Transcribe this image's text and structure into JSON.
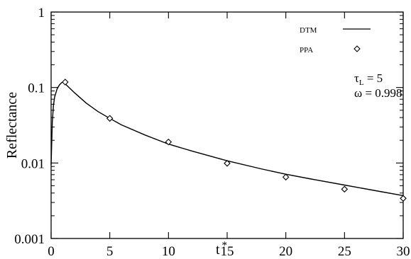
{
  "chart_data": {
    "type": "line",
    "xlabel": "t",
    "xlabel_sup": "*",
    "ylabel": "Reflectance",
    "xlim": [
      0,
      30
    ],
    "ylim": [
      0.001,
      1
    ],
    "yscale": "log",
    "grid": false,
    "legend_position": "top-right",
    "x_ticks": [
      0,
      5,
      10,
      15,
      20,
      25,
      30
    ],
    "x_tick_labels": [
      "0",
      "5",
      "10",
      "15",
      "20",
      "25",
      "30"
    ],
    "y_ticks": [
      0.001,
      0.01,
      0.1,
      1
    ],
    "y_tick_labels": [
      "0.001",
      "0.01",
      "0.1",
      "1"
    ],
    "series": [
      {
        "name": "DTM",
        "style": "line",
        "x": [
          0,
          0.1,
          0.2,
          0.3,
          0.5,
          0.7,
          0.9,
          1.0,
          1.2,
          1.5,
          2,
          3,
          4,
          5,
          6,
          8,
          10,
          12,
          15,
          18,
          20,
          22,
          25,
          28,
          30
        ],
        "y": [
          0.0095,
          0.035,
          0.058,
          0.075,
          0.095,
          0.108,
          0.116,
          0.118,
          0.112,
          0.101,
          0.085,
          0.062,
          0.048,
          0.039,
          0.032,
          0.0235,
          0.0178,
          0.0144,
          0.0107,
          0.0083,
          0.0071,
          0.0062,
          0.0051,
          0.0042,
          0.0037
        ]
      },
      {
        "name": "PPA",
        "style": "marker",
        "marker": "diamond",
        "x": [
          1.2,
          5,
          10,
          15,
          20,
          25,
          30
        ],
        "y": [
          0.118,
          0.039,
          0.019,
          0.0099,
          0.0065,
          0.0045,
          0.0034
        ]
      }
    ],
    "annotations": {
      "tau_symbol": "τ",
      "tau_sub": "L",
      "tau_value": " = 5",
      "omega": "ω = 0.998"
    }
  }
}
